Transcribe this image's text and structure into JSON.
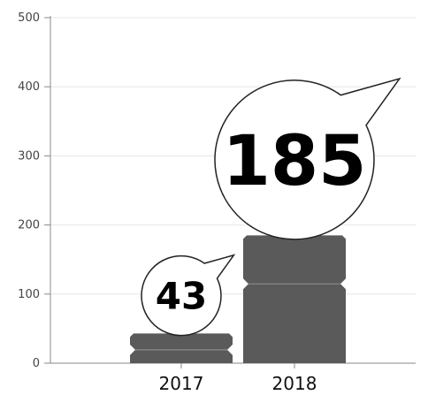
{
  "chart_data": {
    "type": "bar",
    "categories": [
      "2017",
      "2018"
    ],
    "values": [
      43,
      185
    ],
    "data_labels": [
      "43",
      "185"
    ],
    "title": "",
    "xlabel": "",
    "ylabel": "",
    "ylim": [
      0,
      500
    ],
    "yticks": [
      "0",
      "100",
      "200",
      "300",
      "400",
      "500"
    ],
    "grid": true,
    "legend": "none",
    "bar_color": "#5a5a5a",
    "grid_color": "#e6e6e6",
    "axis_color": "#888888"
  }
}
